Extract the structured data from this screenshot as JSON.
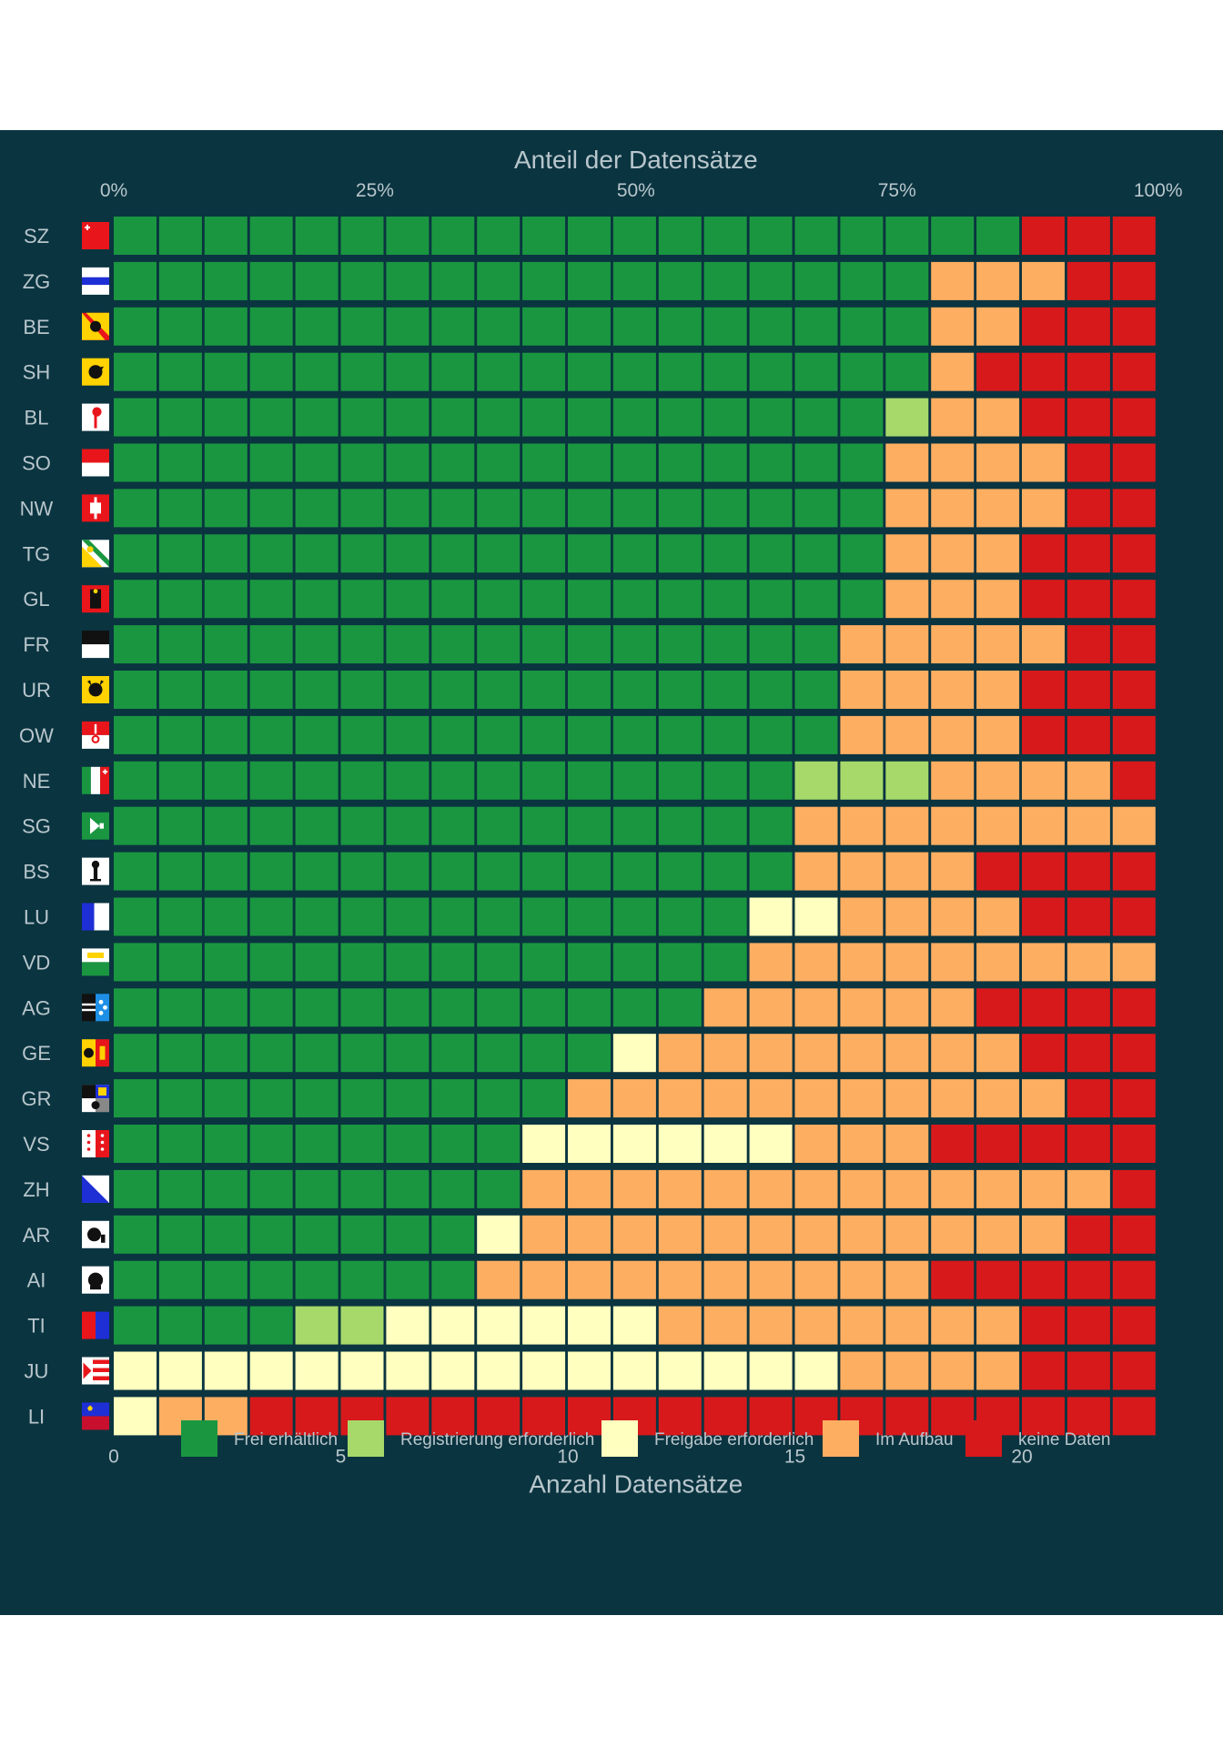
{
  "chart_data": {
    "type": "waffle",
    "x_top_title": "Anteil der Datensätze",
    "x_top_ticks": [
      "0%",
      "25%",
      "50%",
      "75%",
      "100%"
    ],
    "x_bottom_title": "Anzahl Datensätze",
    "x_bottom_ticks": [
      "0",
      "5",
      "10",
      "15",
      "20"
    ],
    "total_per_row": 23,
    "categories": [
      {
        "key": "frei",
        "label": "Frei erhältlich",
        "color": "#1a9641"
      },
      {
        "key": "reg",
        "label": "Registrierung erforderlich",
        "color": "#a6d96a"
      },
      {
        "key": "freigabe",
        "label": "Freigabe erforderlich",
        "color": "#ffffbf"
      },
      {
        "key": "aufbau",
        "label": "Im Aufbau",
        "color": "#fdae61"
      },
      {
        "key": "keine",
        "label": "keine Daten",
        "color": "#d7191c"
      }
    ],
    "rows": [
      {
        "label": "SZ",
        "flag": "schwyz-flag",
        "counts": [
          20,
          0,
          0,
          0,
          3
        ]
      },
      {
        "label": "ZG",
        "flag": "zug-flag",
        "counts": [
          18,
          0,
          0,
          3,
          2
        ]
      },
      {
        "label": "BE",
        "flag": "bern-flag",
        "counts": [
          18,
          0,
          0,
          2,
          3
        ]
      },
      {
        "label": "SH",
        "flag": "schaffhausen-flag",
        "counts": [
          18,
          0,
          0,
          1,
          4
        ]
      },
      {
        "label": "BL",
        "flag": "basel-land-flag",
        "counts": [
          17,
          1,
          0,
          2,
          3
        ]
      },
      {
        "label": "SO",
        "flag": "solothurn-flag",
        "counts": [
          17,
          0,
          0,
          4,
          2
        ]
      },
      {
        "label": "NW",
        "flag": "nidwalden-flag",
        "counts": [
          17,
          0,
          0,
          4,
          2
        ]
      },
      {
        "label": "TG",
        "flag": "thurgau-flag",
        "counts": [
          17,
          0,
          0,
          3,
          3
        ]
      },
      {
        "label": "GL",
        "flag": "glarus-flag",
        "counts": [
          17,
          0,
          0,
          3,
          3
        ]
      },
      {
        "label": "FR",
        "flag": "fribourg-flag",
        "counts": [
          16,
          0,
          0,
          5,
          2
        ]
      },
      {
        "label": "UR",
        "flag": "uri-flag",
        "counts": [
          16,
          0,
          0,
          4,
          3
        ]
      },
      {
        "label": "OW",
        "flag": "obwalden-flag",
        "counts": [
          16,
          0,
          0,
          4,
          3
        ]
      },
      {
        "label": "NE",
        "flag": "neuchatel-flag",
        "counts": [
          15,
          3,
          0,
          4,
          1
        ]
      },
      {
        "label": "SG",
        "flag": "st-gallen-flag",
        "counts": [
          15,
          0,
          0,
          8,
          0
        ]
      },
      {
        "label": "BS",
        "flag": "basel-stadt-flag",
        "counts": [
          15,
          0,
          0,
          4,
          4
        ]
      },
      {
        "label": "LU",
        "flag": "luzern-flag",
        "counts": [
          14,
          0,
          2,
          4,
          3
        ]
      },
      {
        "label": "VD",
        "flag": "vaud-flag",
        "counts": [
          14,
          0,
          0,
          9,
          0
        ]
      },
      {
        "label": "AG",
        "flag": "aargau-flag",
        "counts": [
          13,
          0,
          0,
          6,
          4
        ]
      },
      {
        "label": "GE",
        "flag": "geneve-flag",
        "counts": [
          11,
          0,
          1,
          8,
          3
        ]
      },
      {
        "label": "GR",
        "flag": "graubuenden-flag",
        "counts": [
          10,
          0,
          0,
          11,
          2
        ]
      },
      {
        "label": "VS",
        "flag": "valais-flag",
        "counts": [
          9,
          0,
          6,
          3,
          5
        ]
      },
      {
        "label": "ZH",
        "flag": "zuerich-flag",
        "counts": [
          9,
          0,
          0,
          13,
          1
        ]
      },
      {
        "label": "AR",
        "flag": "appenzell-ar-flag",
        "counts": [
          8,
          0,
          1,
          12,
          2
        ]
      },
      {
        "label": "AI",
        "flag": "appenzell-ai-flag",
        "counts": [
          8,
          0,
          0,
          10,
          5
        ]
      },
      {
        "label": "TI",
        "flag": "ticino-flag",
        "counts": [
          4,
          2,
          6,
          8,
          3
        ]
      },
      {
        "label": "JU",
        "flag": "jura-flag",
        "counts": [
          0,
          0,
          16,
          4,
          3
        ]
      },
      {
        "label": "LI",
        "flag": "liechtenstein-flag",
        "counts": [
          0,
          0,
          1,
          2,
          20
        ]
      }
    ],
    "background": "#0a3440",
    "text_color": "#b8c6cc"
  }
}
